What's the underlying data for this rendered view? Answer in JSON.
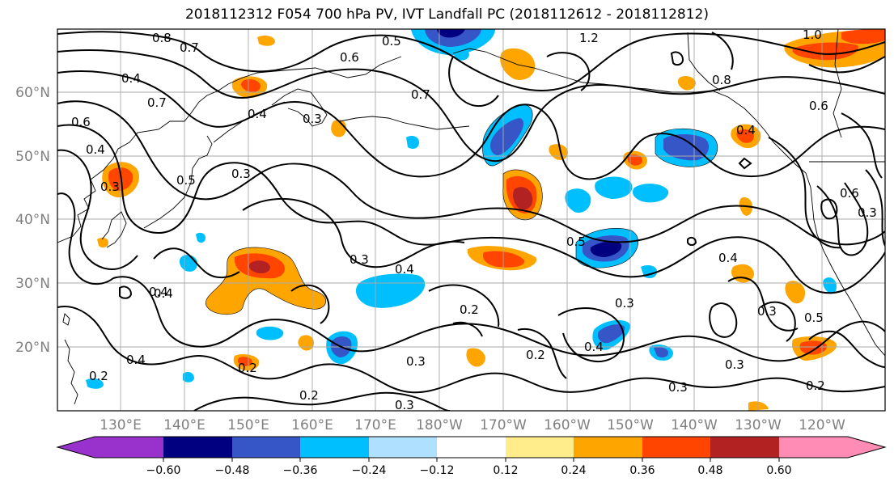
{
  "title": "2018112312 F054 700 hPa PV, IVT Landfall PC (2018112612 - 2018112812)",
  "lat_labels": [
    "60°N",
    "50°N",
    "40°N",
    "30°N",
    "20°N"
  ],
  "lon_labels": [
    "130°E",
    "140°E",
    "150°E",
    "160°E",
    "170°E",
    "180°W",
    "170°W",
    "160°W",
    "150°W",
    "140°W",
    "130°W",
    "120°W"
  ],
  "colorbar": {
    "colors": [
      "#9932cc",
      "#000080",
      "#3656c8",
      "#00bfff",
      "#b0e0ff",
      "#ffffff",
      "#ffec8b",
      "#ffa500",
      "#ff4500",
      "#b22222",
      "#ff8cb4"
    ],
    "tick_labels": [
      "−0.60",
      "−0.48",
      "−0.36",
      "−0.24",
      "−0.12",
      "0.12",
      "0.24",
      "0.36",
      "0.48",
      "0.60"
    ]
  },
  "contour_labels": [
    "0.8",
    "0.7",
    "0.5",
    "1.2",
    "1.0",
    "0.6",
    "0.4",
    "0.7",
    "0.4",
    "0.3",
    "0.7",
    "0.6",
    "0.4",
    "0.3",
    "0.5",
    "0.3",
    "0.8",
    "0.6",
    "0.6",
    "0.3",
    "0.5",
    "0.4",
    "0.4",
    "0.3",
    "0.2",
    "0.3",
    "0.5",
    "0.4",
    "0.3",
    "0.2",
    "0.4",
    "0.3",
    "0.3",
    "0.2",
    "0.3",
    "0.2",
    "0.4",
    "0.2",
    "0.2",
    "0.4",
    "0.3",
    "0.4"
  ]
}
